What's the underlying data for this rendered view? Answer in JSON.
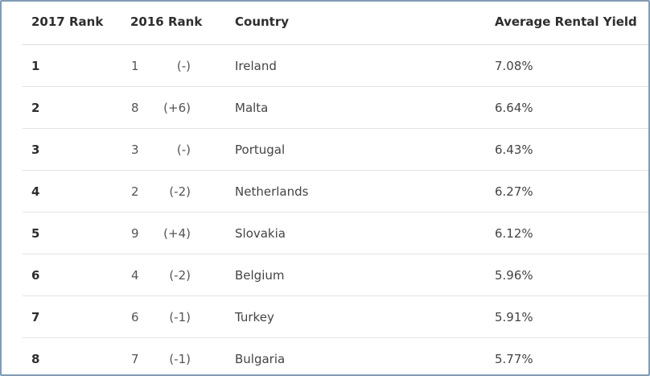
{
  "table": {
    "headers": {
      "rank_2017": "2017 Rank",
      "rank_2016": "2016 Rank",
      "country": "Country",
      "yield": "Average Rental Yield"
    },
    "rows": [
      {
        "rank_2017": "1",
        "rank_2016": "1",
        "change": "(-)",
        "country": "Ireland",
        "yield": "7.08%"
      },
      {
        "rank_2017": "2",
        "rank_2016": "8",
        "change": "(+6)",
        "country": "Malta",
        "yield": "6.64%"
      },
      {
        "rank_2017": "3",
        "rank_2016": "3",
        "change": "(-)",
        "country": "Portugal",
        "yield": "6.43%"
      },
      {
        "rank_2017": "4",
        "rank_2016": "2",
        "change": "(-2)",
        "country": "Netherlands",
        "yield": "6.27%"
      },
      {
        "rank_2017": "5",
        "rank_2016": "9",
        "change": "(+4)",
        "country": "Slovakia",
        "yield": "6.12%"
      },
      {
        "rank_2017": "6",
        "rank_2016": "4",
        "change": "(-2)",
        "country": "Belgium",
        "yield": "5.96%"
      },
      {
        "rank_2017": "7",
        "rank_2016": "6",
        "change": "(-1)",
        "country": "Turkey",
        "yield": "5.91%"
      },
      {
        "rank_2017": "8",
        "rank_2016": "7",
        "change": "(-1)",
        "country": "Bulgaria",
        "yield": "5.77%"
      }
    ]
  },
  "colors": {
    "frame_border": "#7f9cb8",
    "row_divider": "#e3e3e3",
    "header_text": "#2e2e2e",
    "body_text": "#444444"
  }
}
